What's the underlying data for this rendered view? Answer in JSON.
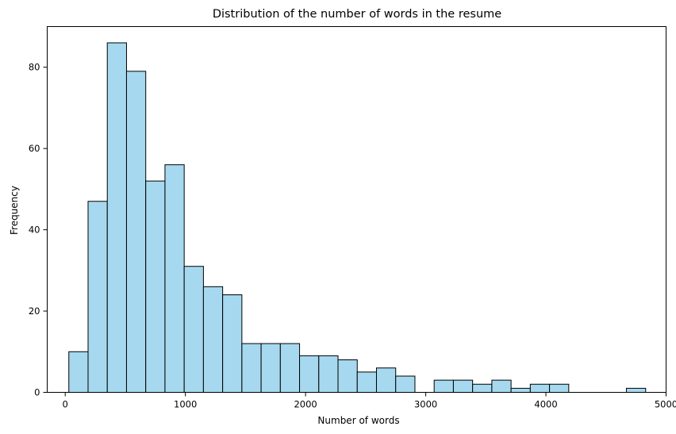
{
  "chart_data": {
    "type": "bar",
    "title": "Distribution of the number of words in the resume",
    "xlabel": "Number of words",
    "ylabel": "Frequency",
    "xlim": [
      -150,
      5000
    ],
    "ylim": [
      0,
      90
    ],
    "xticks": [
      0,
      1000,
      2000,
      3000,
      4000,
      5000
    ],
    "yticks": [
      0,
      20,
      40,
      60,
      80
    ],
    "bin_edges": [
      30,
      190,
      350,
      510,
      670,
      830,
      990,
      1150,
      1310,
      1470,
      1630,
      1790,
      1950,
      2110,
      2270,
      2430,
      2590,
      2750,
      2910,
      3070,
      3230,
      3390,
      3550,
      3710,
      3870,
      4030,
      4190,
      4350,
      4510,
      4670,
      4830
    ],
    "values": [
      10,
      47,
      86,
      79,
      52,
      56,
      31,
      26,
      24,
      12,
      12,
      12,
      9,
      9,
      8,
      5,
      6,
      4,
      0,
      3,
      3,
      2,
      3,
      1,
      2,
      2,
      0,
      0,
      0,
      1
    ],
    "grid": false,
    "bar_color": "#a6d9ef",
    "edge_color": "#000000"
  }
}
